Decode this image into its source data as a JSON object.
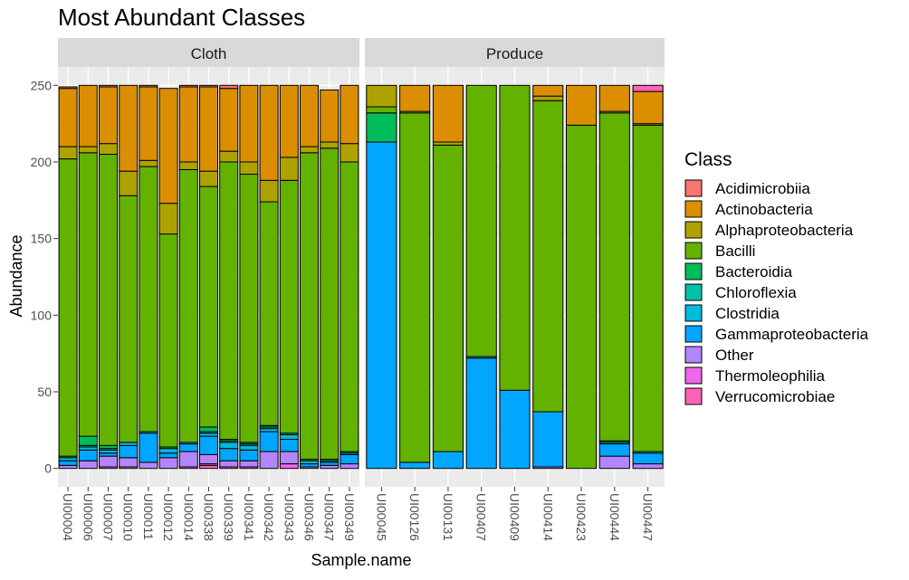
{
  "chart_data": {
    "type": "bar",
    "stacked": true,
    "title": "Most Abundant Classes",
    "xlabel": "Sample.name",
    "ylabel": "Abundance",
    "ylim": [
      -12,
      262
    ],
    "yticks": [
      0,
      50,
      100,
      150,
      200,
      250
    ],
    "grid": true,
    "legend_position": "right",
    "legend_title": "Class",
    "classes": [
      "Acidimicrobiia",
      "Actinobacteria",
      "Alphaproteobacteria",
      "Bacilli",
      "Bacteroidia",
      "Chloroflexia",
      "Clostridia",
      "Gammaproteobacteria",
      "Other",
      "Thermoleophilia",
      "Verrucomicrobiae"
    ],
    "colors": {
      "Acidimicrobiia": "#F8766D",
      "Actinobacteria": "#DB8E00",
      "Alphaproteobacteria": "#AEA200",
      "Bacilli": "#64B200",
      "Bacteroidia": "#00BD5C",
      "Chloroflexia": "#00C1A7",
      "Clostridia": "#00BADE",
      "Gammaproteobacteria": "#00A6FF",
      "Other": "#B385FF",
      "Thermoleophilia": "#EF67EB",
      "Verrucomicrobiae": "#FF63B6"
    },
    "stack_order_bottom_to_top": [
      "Verrucomicrobiae",
      "Thermoleophilia",
      "Other",
      "Gammaproteobacteria",
      "Clostridia",
      "Chloroflexia",
      "Bacteroidia",
      "Bacilli",
      "Alphaproteobacteria",
      "Actinobacteria",
      "Acidimicrobiia"
    ],
    "facets": [
      {
        "name": "Cloth",
        "samples": [
          {
            "name": "UI00004",
            "values": {
              "Verrucomicrobiae": 0,
              "Thermoleophilia": 0,
              "Other": 2,
              "Gammaproteobacteria": 3,
              "Clostridia": 2,
              "Chloroflexia": 0,
              "Bacteroidia": 1,
              "Bacilli": 194,
              "Alphaproteobacteria": 8,
              "Actinobacteria": 38,
              "Acidimicrobiia": 1
            }
          },
          {
            "name": "UI00006",
            "values": {
              "Verrucomicrobiae": 0,
              "Thermoleophilia": 0,
              "Other": 5,
              "Gammaproteobacteria": 7,
              "Clostridia": 2,
              "Chloroflexia": 1,
              "Bacteroidia": 6,
              "Bacilli": 185,
              "Alphaproteobacteria": 4,
              "Actinobacteria": 40,
              "Acidimicrobiia": 0
            }
          },
          {
            "name": "UI00007",
            "values": {
              "Verrucomicrobiae": 0,
              "Thermoleophilia": 1,
              "Other": 7,
              "Gammaproteobacteria": 2,
              "Clostridia": 2,
              "Chloroflexia": 1,
              "Bacteroidia": 2,
              "Bacilli": 190,
              "Alphaproteobacteria": 7,
              "Actinobacteria": 37,
              "Acidimicrobiia": 1
            }
          },
          {
            "name": "UI00010",
            "values": {
              "Verrucomicrobiae": 0,
              "Thermoleophilia": 1,
              "Other": 6,
              "Gammaproteobacteria": 8,
              "Clostridia": 2,
              "Chloroflexia": 0,
              "Bacteroidia": 0,
              "Bacilli": 161,
              "Alphaproteobacteria": 16,
              "Actinobacteria": 56,
              "Acidimicrobiia": 0
            }
          },
          {
            "name": "UI00011",
            "values": {
              "Verrucomicrobiae": 0,
              "Thermoleophilia": 0,
              "Other": 4,
              "Gammaproteobacteria": 19,
              "Clostridia": 1,
              "Chloroflexia": 0,
              "Bacteroidia": 0,
              "Bacilli": 173,
              "Alphaproteobacteria": 4,
              "Actinobacteria": 48,
              "Acidimicrobiia": 1
            }
          },
          {
            "name": "UI00012",
            "values": {
              "Verrucomicrobiae": 0,
              "Thermoleophilia": 0,
              "Other": 7,
              "Gammaproteobacteria": 3,
              "Clostridia": 3,
              "Chloroflexia": 0,
              "Bacteroidia": 1,
              "Bacilli": 139,
              "Alphaproteobacteria": 20,
              "Actinobacteria": 75,
              "Acidimicrobiia": 0
            }
          },
          {
            "name": "UI00014",
            "values": {
              "Verrucomicrobiae": 0,
              "Thermoleophilia": 1,
              "Other": 10,
              "Gammaproteobacteria": 5,
              "Clostridia": 1,
              "Chloroflexia": 0,
              "Bacteroidia": 0,
              "Bacilli": 178,
              "Alphaproteobacteria": 5,
              "Actinobacteria": 49,
              "Acidimicrobiia": 1
            }
          },
          {
            "name": "UI00338",
            "values": {
              "Verrucomicrobiae": 2,
              "Thermoleophilia": 1,
              "Other": 6,
              "Gammaproteobacteria": 12,
              "Clostridia": 2,
              "Chloroflexia": 1,
              "Bacteroidia": 3,
              "Bacilli": 157,
              "Alphaproteobacteria": 10,
              "Actinobacteria": 55,
              "Acidimicrobiia": 1
            }
          },
          {
            "name": "UI00339",
            "values": {
              "Verrucomicrobiae": 0,
              "Thermoleophilia": 1,
              "Other": 4,
              "Gammaproteobacteria": 8,
              "Clostridia": 4,
              "Chloroflexia": 1,
              "Bacteroidia": 1,
              "Bacilli": 181,
              "Alphaproteobacteria": 7,
              "Actinobacteria": 41,
              "Acidimicrobiia": 2
            }
          },
          {
            "name": "UI00341",
            "values": {
              "Verrucomicrobiae": 0,
              "Thermoleophilia": 1,
              "Other": 4,
              "Gammaproteobacteria": 7,
              "Clostridia": 3,
              "Chloroflexia": 1,
              "Bacteroidia": 1,
              "Bacilli": 175,
              "Alphaproteobacteria": 8,
              "Actinobacteria": 50,
              "Acidimicrobiia": 0
            }
          },
          {
            "name": "UI00342",
            "values": {
              "Verrucomicrobiae": 0,
              "Thermoleophilia": 0,
              "Other": 11,
              "Gammaproteobacteria": 13,
              "Clostridia": 2,
              "Chloroflexia": 1,
              "Bacteroidia": 1,
              "Bacilli": 146,
              "Alphaproteobacteria": 14,
              "Actinobacteria": 62,
              "Acidimicrobiia": 0
            }
          },
          {
            "name": "UI00343",
            "values": {
              "Verrucomicrobiae": 0,
              "Thermoleophilia": 3,
              "Other": 8,
              "Gammaproteobacteria": 8,
              "Clostridia": 3,
              "Chloroflexia": 1,
              "Bacteroidia": 0,
              "Bacilli": 165,
              "Alphaproteobacteria": 15,
              "Actinobacteria": 47,
              "Acidimicrobiia": 0
            }
          },
          {
            "name": "UI00346",
            "values": {
              "Verrucomicrobiae": 0,
              "Thermoleophilia": 0,
              "Other": 1,
              "Gammaproteobacteria": 2,
              "Clostridia": 2,
              "Chloroflexia": 0,
              "Bacteroidia": 1,
              "Bacilli": 200,
              "Alphaproteobacteria": 4,
              "Actinobacteria": 40,
              "Acidimicrobiia": 0
            }
          },
          {
            "name": "UI00347",
            "values": {
              "Verrucomicrobiae": 0,
              "Thermoleophilia": 0,
              "Other": 2,
              "Gammaproteobacteria": 2,
              "Clostridia": 1,
              "Chloroflexia": 0,
              "Bacteroidia": 1,
              "Bacilli": 203,
              "Alphaproteobacteria": 4,
              "Actinobacteria": 34,
              "Acidimicrobiia": 0
            }
          },
          {
            "name": "UI00349",
            "values": {
              "Verrucomicrobiae": 0,
              "Thermoleophilia": 0,
              "Other": 3,
              "Gammaproteobacteria": 6,
              "Clostridia": 1,
              "Chloroflexia": 0,
              "Bacteroidia": 1,
              "Bacilli": 189,
              "Alphaproteobacteria": 12,
              "Actinobacteria": 38,
              "Acidimicrobiia": 0
            }
          }
        ]
      },
      {
        "name": "Produce",
        "samples": [
          {
            "name": "UI00045",
            "values": {
              "Verrucomicrobiae": 0,
              "Thermoleophilia": 0,
              "Other": 0,
              "Gammaproteobacteria": 213,
              "Clostridia": 0,
              "Chloroflexia": 0,
              "Bacteroidia": 19,
              "Bacilli": 4,
              "Alphaproteobacteria": 14,
              "Actinobacteria": 0,
              "Acidimicrobiia": 0
            }
          },
          {
            "name": "UI00126",
            "values": {
              "Verrucomicrobiae": 0,
              "Thermoleophilia": 0,
              "Other": 0,
              "Gammaproteobacteria": 4,
              "Clostridia": 0,
              "Chloroflexia": 0,
              "Bacteroidia": 0,
              "Bacilli": 228,
              "Alphaproteobacteria": 1,
              "Actinobacteria": 17,
              "Acidimicrobiia": 0
            }
          },
          {
            "name": "UI00131",
            "values": {
              "Verrucomicrobiae": 0,
              "Thermoleophilia": 0,
              "Other": 0,
              "Gammaproteobacteria": 11,
              "Clostridia": 0,
              "Chloroflexia": 0,
              "Bacteroidia": 0,
              "Bacilli": 200,
              "Alphaproteobacteria": 2,
              "Actinobacteria": 37,
              "Acidimicrobiia": 0
            }
          },
          {
            "name": "UI00407",
            "values": {
              "Verrucomicrobiae": 0,
              "Thermoleophilia": 0,
              "Other": 0,
              "Gammaproteobacteria": 72,
              "Clostridia": 1,
              "Chloroflexia": 0,
              "Bacteroidia": 0,
              "Bacilli": 177,
              "Alphaproteobacteria": 0,
              "Actinobacteria": 0,
              "Acidimicrobiia": 0
            }
          },
          {
            "name": "UI00409",
            "values": {
              "Verrucomicrobiae": 0,
              "Thermoleophilia": 0,
              "Other": 0,
              "Gammaproteobacteria": 51,
              "Clostridia": 0,
              "Chloroflexia": 0,
              "Bacteroidia": 0,
              "Bacilli": 199,
              "Alphaproteobacteria": 0,
              "Actinobacteria": 0,
              "Acidimicrobiia": 0
            }
          },
          {
            "name": "UI00414",
            "values": {
              "Verrucomicrobiae": 0,
              "Thermoleophilia": 0,
              "Other": 1,
              "Gammaproteobacteria": 36,
              "Clostridia": 0,
              "Chloroflexia": 0,
              "Bacteroidia": 0,
              "Bacilli": 203,
              "Alphaproteobacteria": 3,
              "Actinobacteria": 7,
              "Acidimicrobiia": 0
            }
          },
          {
            "name": "UI00423",
            "values": {
              "Verrucomicrobiae": 0,
              "Thermoleophilia": 0,
              "Other": 0,
              "Gammaproteobacteria": 0,
              "Clostridia": 0,
              "Chloroflexia": 0,
              "Bacteroidia": 0,
              "Bacilli": 224,
              "Alphaproteobacteria": 0,
              "Actinobacteria": 26,
              "Acidimicrobiia": 0
            }
          },
          {
            "name": "UI00444",
            "values": {
              "Verrucomicrobiae": 0,
              "Thermoleophilia": 0,
              "Other": 8,
              "Gammaproteobacteria": 8,
              "Clostridia": 1,
              "Chloroflexia": 0,
              "Bacteroidia": 1,
              "Bacilli": 214,
              "Alphaproteobacteria": 1,
              "Actinobacteria": 17,
              "Acidimicrobiia": 0
            }
          },
          {
            "name": "UI00447",
            "values": {
              "Verrucomicrobiae": 0,
              "Thermoleophilia": 0,
              "Other": 3,
              "Gammaproteobacteria": 7,
              "Clostridia": 1,
              "Chloroflexia": 0,
              "Bacteroidia": 0,
              "Bacilli": 213,
              "Alphaproteobacteria": 1,
              "Actinobacteria": 21,
              "Acidimicrobiia": 0,
              "Verrucomicrobiae_top": 4
            }
          }
        ]
      }
    ]
  }
}
